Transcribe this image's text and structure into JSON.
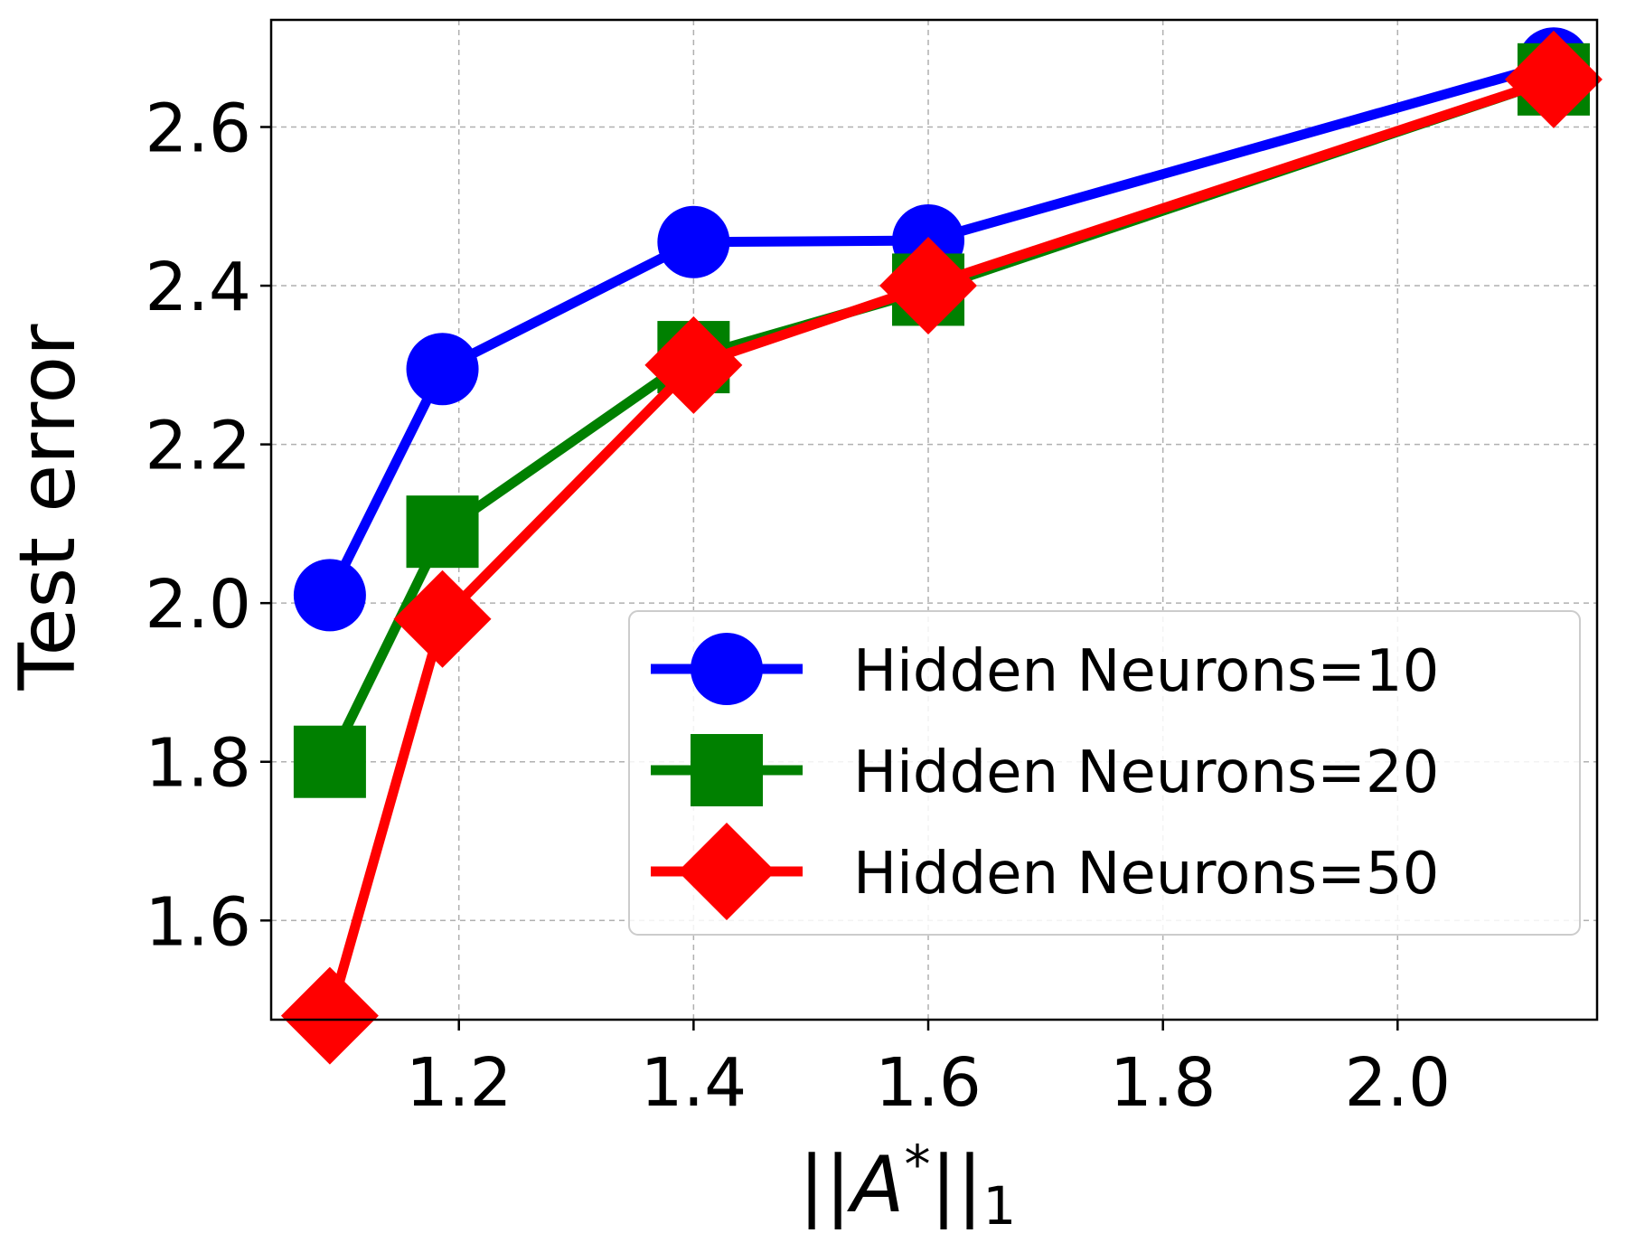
{
  "chart_data": {
    "type": "line",
    "title": "",
    "xlabel_parts": {
      "bars_left": "||",
      "symbol": "A",
      "sup": "*",
      "bars_right": "||",
      "sub": "1"
    },
    "ylabel": "Test error",
    "xlim": [
      1.04,
      2.17
    ],
    "ylim": [
      1.475,
      2.735
    ],
    "xticks": [
      1.2,
      1.4,
      1.6,
      1.8,
      2.0
    ],
    "xtick_labels": [
      "1.2",
      "1.4",
      "1.6",
      "1.8",
      "2.0"
    ],
    "yticks": [
      1.6,
      1.8,
      2.0,
      2.2,
      2.4,
      2.6
    ],
    "ytick_labels": [
      "1.6",
      "1.8",
      "2.0",
      "2.2",
      "2.4",
      "2.6"
    ],
    "grid": true,
    "legend_position": "lower-right",
    "series": [
      {
        "name": "Hidden Neurons=10",
        "color": "#0000ff",
        "marker": "circle",
        "x": [
          1.09,
          1.186,
          1.4,
          1.6,
          2.133
        ],
        "y": [
          2.01,
          2.295,
          2.455,
          2.457,
          2.68
        ]
      },
      {
        "name": "Hidden Neurons=20",
        "color": "#008000",
        "marker": "square",
        "x": [
          1.09,
          1.186,
          1.4,
          1.6,
          2.133
        ],
        "y": [
          1.8,
          2.09,
          2.31,
          2.395,
          2.66
        ]
      },
      {
        "name": "Hidden Neurons=50",
        "color": "#ff0000",
        "marker": "diamond",
        "x": [
          1.09,
          1.186,
          1.4,
          1.6,
          2.133
        ],
        "y": [
          1.48,
          1.98,
          2.3,
          2.4,
          2.66
        ]
      }
    ]
  }
}
